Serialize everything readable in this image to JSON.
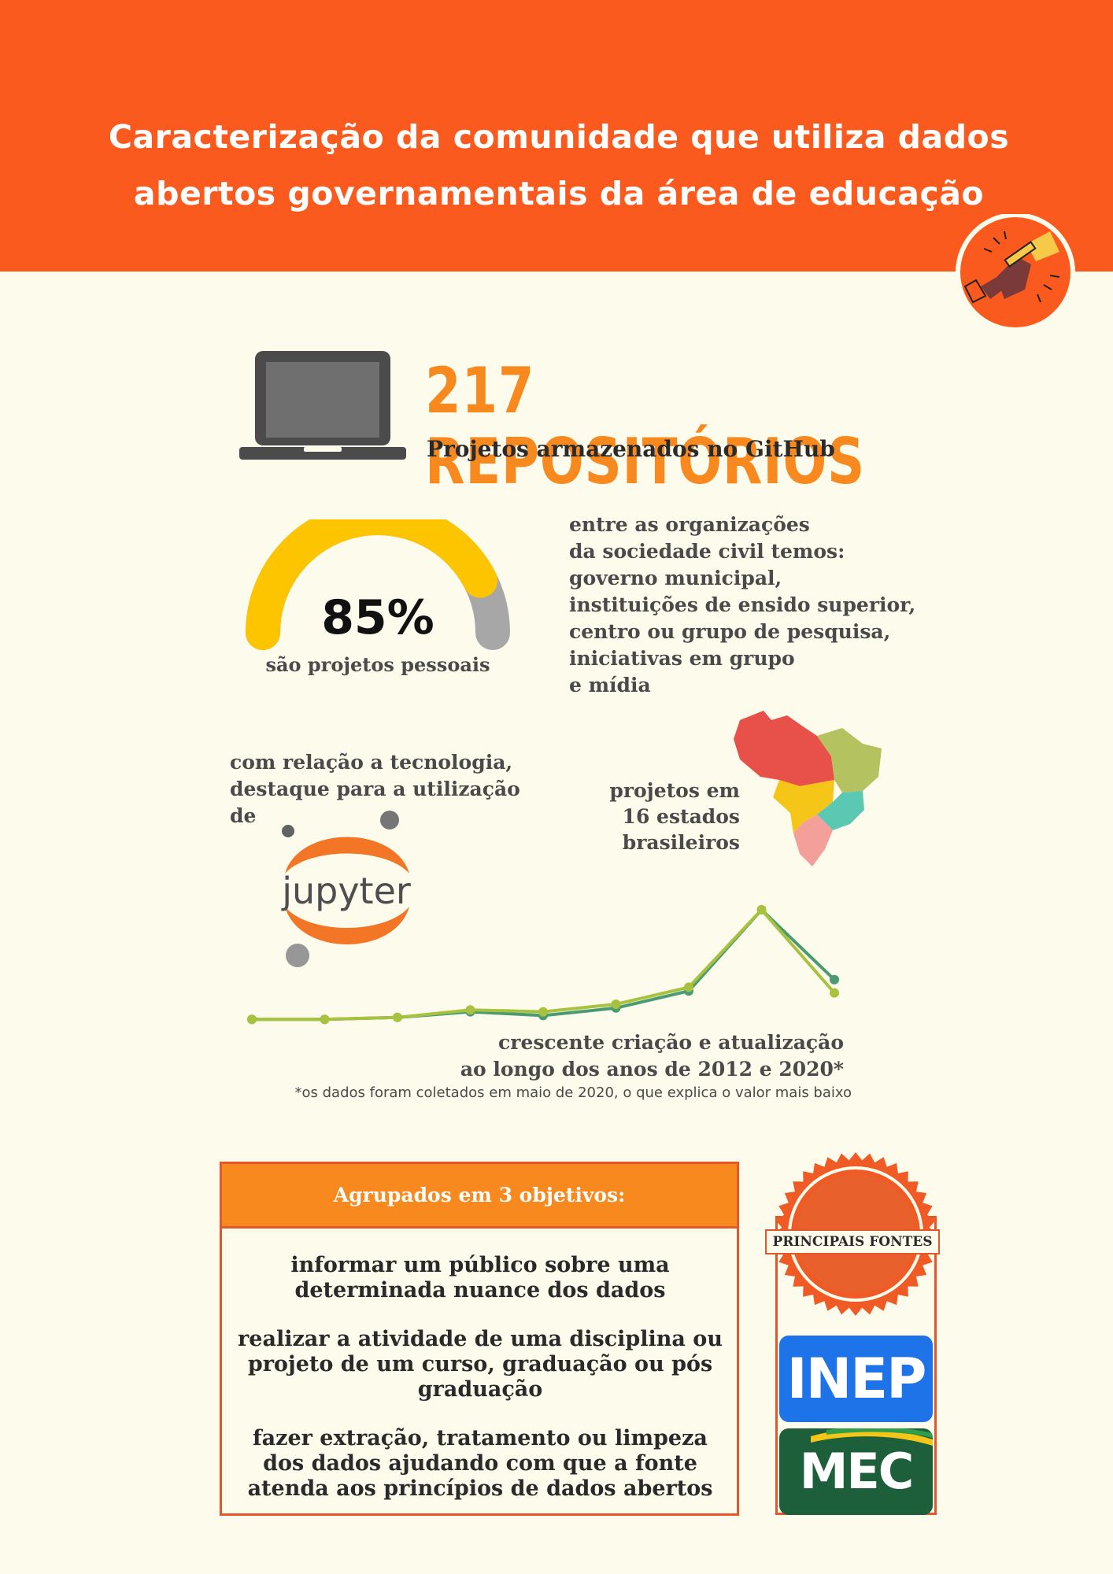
{
  "header": {
    "title_line1": "Caracterização da comunidade que utiliza dados",
    "title_line2": "abertos governamentais da área de educação",
    "background_color": "#fa5a1e",
    "badge_icon": "hands-with-pencil-icon"
  },
  "repos": {
    "icon": "laptop-icon",
    "count": "217 REPOSITÓRIOS",
    "subtitle": "Projetos armazenados no GitHub"
  },
  "gauge": {
    "value_label": "85%",
    "value": 0.85,
    "label": "são projetos pessoais",
    "colors": {
      "filled": "#fdc500",
      "remaining": "#a7a7a7"
    }
  },
  "organizations": {
    "lines": [
      "entre as organizações",
      "da sociedade civil temos:",
      "governo municipal,",
      "instituições de ensido superior,",
      "centro ou grupo de pesquisa,",
      "iniciativas em grupo",
      "e mídia"
    ]
  },
  "technology": {
    "lines": [
      "com relação a tecnologia,",
      "destaque para a utilização",
      "de"
    ],
    "logo_text": "jupyter",
    "logo_color": "#f37626"
  },
  "states": {
    "lines": [
      "projetos em",
      "16 estados",
      "brasileiros"
    ],
    "map_icon": "brazil-map-icon"
  },
  "chart_data": {
    "type": "line",
    "x": [
      2012,
      2013,
      2014,
      2015,
      2016,
      2017,
      2018,
      2019,
      2020
    ],
    "series": [
      {
        "values": [
          2,
          2,
          3,
          6,
          4,
          8,
          17,
          60,
          23
        ],
        "color": "#4a9b74"
      },
      {
        "values": [
          2,
          2,
          3,
          7,
          6,
          10,
          19,
          60,
          16
        ],
        "color": "#a8c23f"
      }
    ],
    "caption_line1": "crescente criação e atualização",
    "caption_line2": "ao longo dos anos de 2012 e 2020*",
    "footnote": "*os dados foram coletados em maio de 2020, o que explica o valor mais baixo",
    "grid": false,
    "axes_visible": false
  },
  "goals": {
    "header": "Agrupados em 3 objetivos:",
    "items": [
      "informar um público sobre uma determinada nuance dos dados",
      "realizar a atividade de uma disciplina ou projeto de um curso, graduação ou pós graduação",
      "fazer extração, tratamento ou limpeza dos dados ajudando com que a fonte atenda aos princípios de dados abertos"
    ]
  },
  "sources": {
    "label": "PRINCIPAIS FONTES",
    "logos": [
      "INEP",
      "MEC"
    ],
    "inep_color": "#1f73e8",
    "mec_color": "#1d5f3a"
  }
}
